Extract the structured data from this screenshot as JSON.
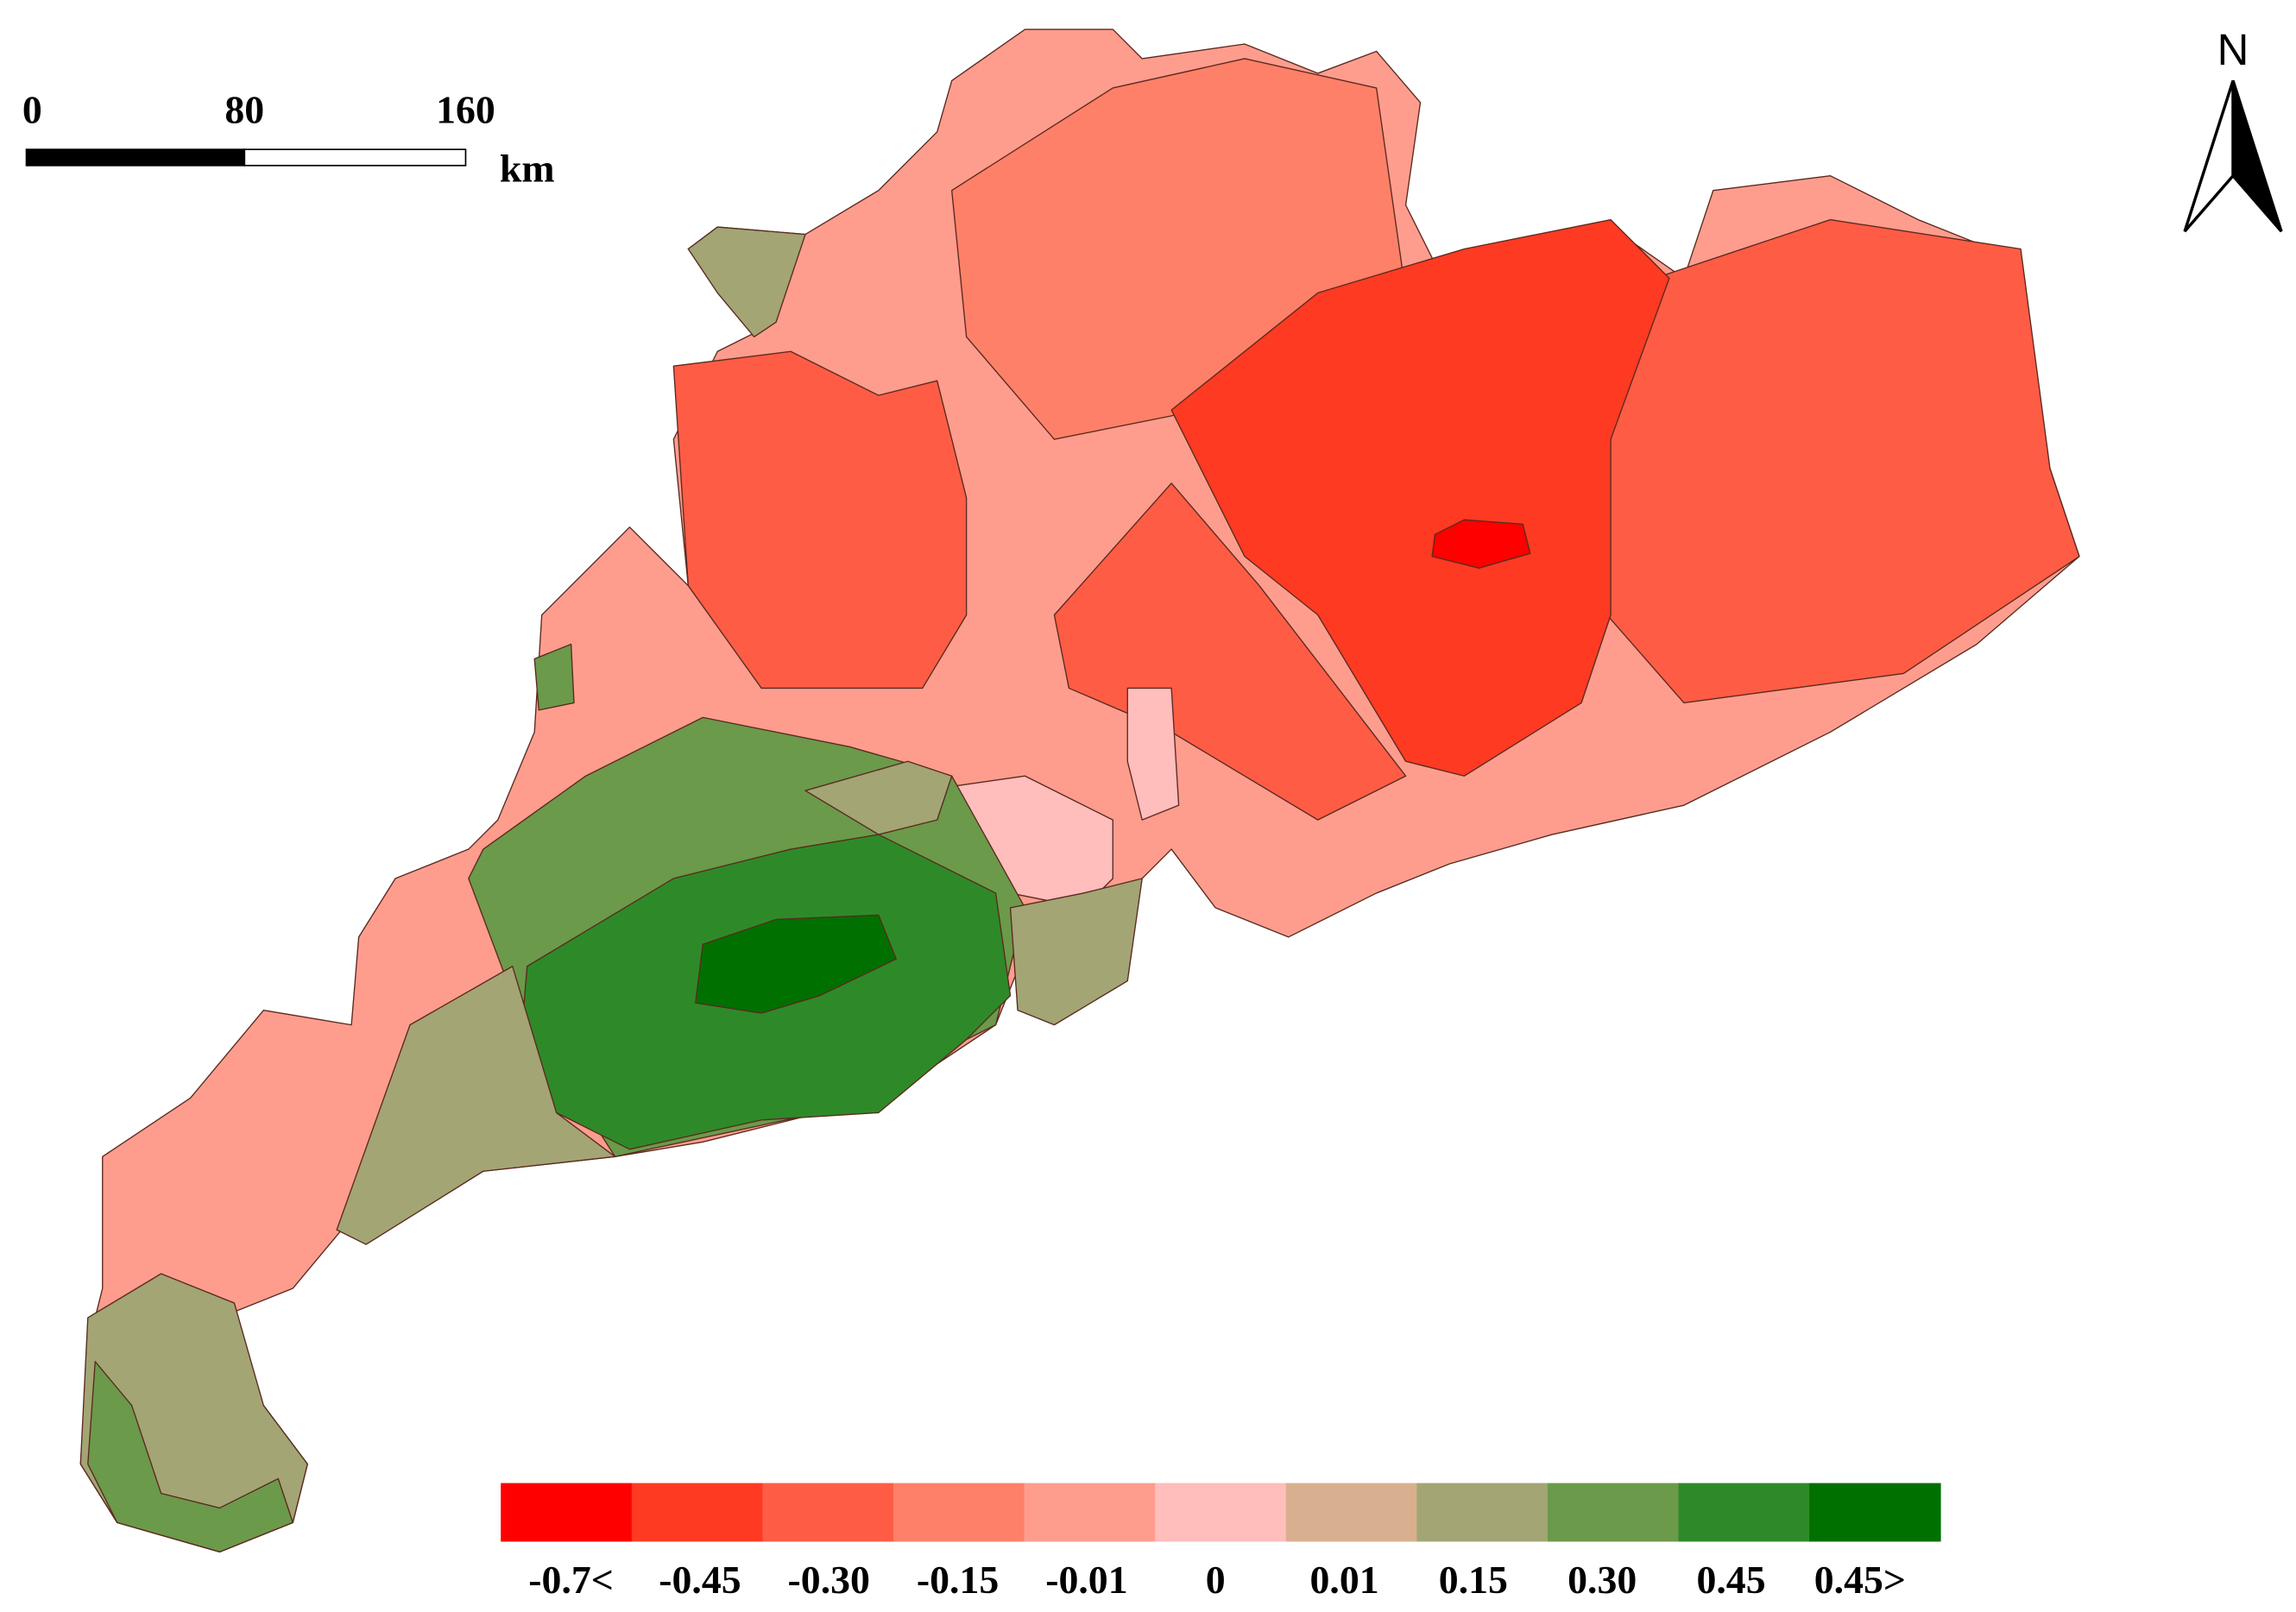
{
  "scale_bar": {
    "ticks": [
      "0",
      "80",
      "160"
    ],
    "unit": "km"
  },
  "north_label": "N",
  "legend": {
    "labels": [
      "-0.7<",
      "-0.45",
      "-0.30",
      "-0.15",
      "-0.01",
      "0",
      "0.01",
      "0.15",
      "0.30",
      "0.45",
      "0.45>"
    ],
    "colors": [
      "#ff0000",
      "#ff3a22",
      "#ff5c45",
      "#ff8068",
      "#fe9d8e",
      "#ffbdbc",
      "#d9b08f",
      "#a3a574",
      "#6b9a4a",
      "#2e8a28",
      "#007000"
    ]
  }
}
